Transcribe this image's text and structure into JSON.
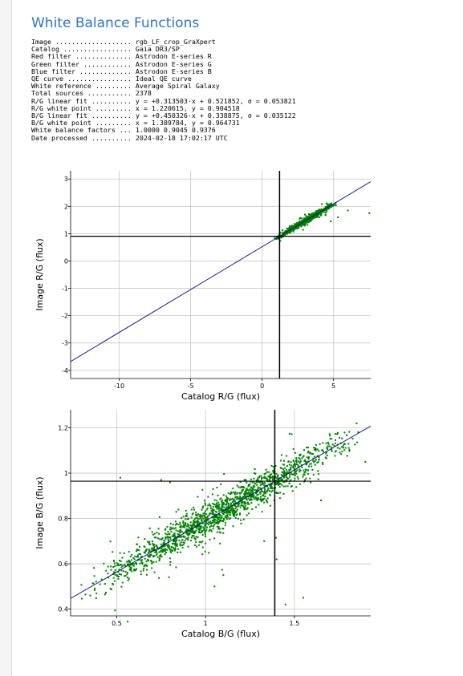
{
  "page": {
    "title": "White Balance Functions"
  },
  "info": [
    {
      "key": "Image",
      "dots": " ...................",
      "value": "rgb_LF_crop_GraXpert"
    },
    {
      "key": "Catalog",
      "dots": " .................",
      "value": "Gaia DR3/SP"
    },
    {
      "key": "Red filter",
      "dots": " ..............",
      "value": "Astrodon E-series R"
    },
    {
      "key": "Green filter",
      "dots": " ............",
      "value": "Astrodon E-series G"
    },
    {
      "key": "Blue filter",
      "dots": " .............",
      "value": "Astrodon E-series B"
    },
    {
      "key": "QE curve",
      "dots": " ................",
      "value": "Ideal QE curve"
    },
    {
      "key": "White reference",
      "dots": " .........",
      "value": "Average Spiral Galaxy"
    },
    {
      "key": "Total sources",
      "dots": " ...........",
      "value": "2378"
    },
    {
      "key": "R/G linear fit",
      "dots": " ..........",
      "value": "y = +0.313503·x + 0.521852, σ = 0.053821"
    },
    {
      "key": "R/G white point",
      "dots": " .........",
      "value": "x = 1.220615, y = 0.904518"
    },
    {
      "key": "B/G linear fit",
      "dots": " ..........",
      "value": "y = +0.450326·x + 0.338875, σ = 0.035122"
    },
    {
      "key": "B/G white point",
      "dots": " .........",
      "value": "x = 1.389784, y = 0.964731"
    },
    {
      "key": "White balance factors",
      "dots": " ...",
      "value": "1.0000 0.9045 0.9376"
    },
    {
      "key": "Date processed",
      "dots": " ..........",
      "value": "2024-02-18 17:02:17 UTC"
    }
  ],
  "colors": {
    "title": "#2f74c0",
    "points": "#008000",
    "fit_line": "#000080",
    "white_point_lines": "#000000",
    "grid": "#c8c8c8"
  },
  "chart_data": [
    {
      "type": "scatter",
      "xlabel": "Catalog R/G (flux)",
      "ylabel": "Image R/G (flux)",
      "xlim": [
        -13.4,
        7.6
      ],
      "ylim": [
        -4.3,
        3.3
      ],
      "xticks": [
        -10,
        -5,
        0,
        5
      ],
      "yticks": [
        -4,
        -3,
        -2,
        -1,
        0,
        1,
        2,
        3
      ],
      "tick_labels_x": [
        "-10",
        "-5",
        "0",
        "5"
      ],
      "tick_labels_y": [
        "-4",
        "-3",
        "-2",
        "-1",
        "0",
        "1",
        "2",
        "3"
      ],
      "grid": true,
      "fit": {
        "slope": 0.313503,
        "intercept": 0.521852
      },
      "white_point": {
        "x": 1.220615,
        "y": 0.904518
      },
      "points": {
        "n": 700,
        "x_range": [
          0.8,
          5.2
        ],
        "scatter": 0.053821
      },
      "outliers": [
        [
          6.0,
          1.85
        ],
        [
          7.5,
          1.75
        ],
        [
          4.8,
          1.45
        ],
        [
          5.3,
          1.6
        ],
        [
          3.0,
          1.7
        ]
      ]
    },
    {
      "type": "scatter",
      "xlabel": "Catalog B/G (flux)",
      "ylabel": "Image B/G (flux)",
      "xlim": [
        0.24,
        1.93
      ],
      "ylim": [
        0.37,
        1.28
      ],
      "xticks": [
        0.5,
        1,
        1.5
      ],
      "yticks": [
        0.4,
        0.6,
        0.8,
        1,
        1.2
      ],
      "tick_labels_x": [
        "0.5",
        "1",
        "1.5"
      ],
      "tick_labels_y": [
        "0.4",
        "0.6",
        "0.8",
        "1",
        "1.2"
      ],
      "grid": true,
      "fit": {
        "slope": 0.450326,
        "intercept": 0.338875
      },
      "white_point": {
        "x": 1.389784,
        "y": 0.964731
      },
      "points": {
        "n": 1600,
        "x_range": [
          0.3,
          1.88
        ],
        "scatter": 0.035122
      },
      "outliers": [
        [
          0.52,
          0.98
        ],
        [
          0.75,
          0.97
        ],
        [
          0.8,
          0.96
        ],
        [
          1.45,
          0.42
        ],
        [
          1.55,
          0.45
        ],
        [
          1.65,
          0.88
        ],
        [
          1.1,
          0.55
        ],
        [
          1.05,
          0.5
        ],
        [
          0.35,
          0.46
        ],
        [
          1.9,
          1.05
        ],
        [
          1.4,
          0.62
        ],
        [
          1.33,
          0.7
        ]
      ]
    }
  ]
}
